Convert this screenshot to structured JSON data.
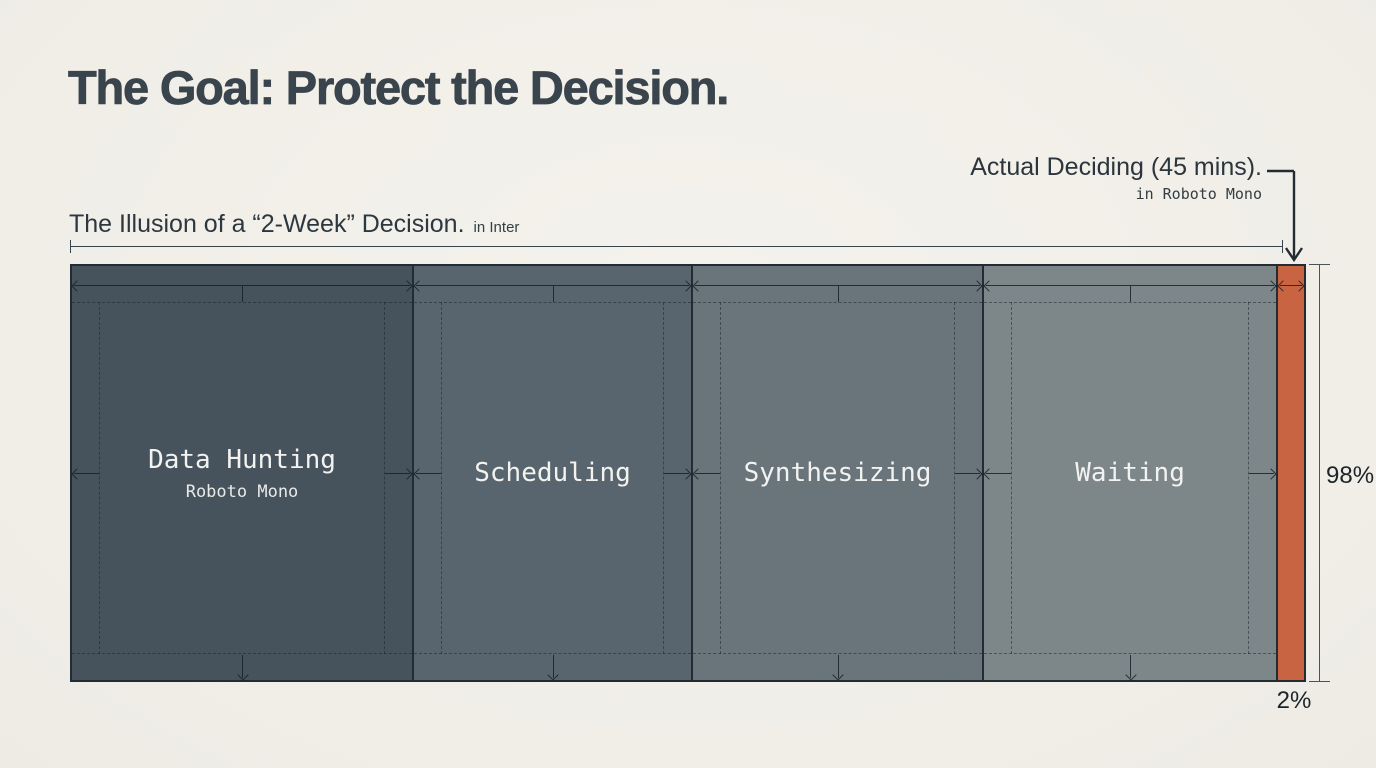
{
  "slide": {
    "background": "#f1efe9"
  },
  "title": "The Goal: Protect the Decision.",
  "bar_caption": {
    "text": "The Illusion of a “2-Week” Decision.",
    "note": "in Inter"
  },
  "callout": {
    "text": "Actual Deciding (45 mins).",
    "note": "in Roboto Mono"
  },
  "shares": {
    "illusion": "98%",
    "deciding": "2%"
  },
  "colors": {
    "accent": "#c96443",
    "ink": "#242e35",
    "title_ink": "#3a444d",
    "paper": "#f1efe9"
  },
  "segments": [
    {
      "label": "Data Hunting",
      "sublabel": "Roboto Mono",
      "color": "#46525c",
      "width_pct": 27.76
    },
    {
      "label": "Scheduling",
      "sublabel": "",
      "color": "#59656e",
      "width_pct": 22.65
    },
    {
      "label": "Synthesizing",
      "sublabel": "",
      "color": "#6a747b",
      "width_pct": 23.62
    },
    {
      "label": "Waiting",
      "sublabel": "",
      "color": "#7d8689",
      "width_pct": 23.87
    },
    {
      "label": "",
      "sublabel": "",
      "color": "#c96443",
      "width_pct": 2.1,
      "accent": true,
      "name": "actual-deciding"
    }
  ]
}
